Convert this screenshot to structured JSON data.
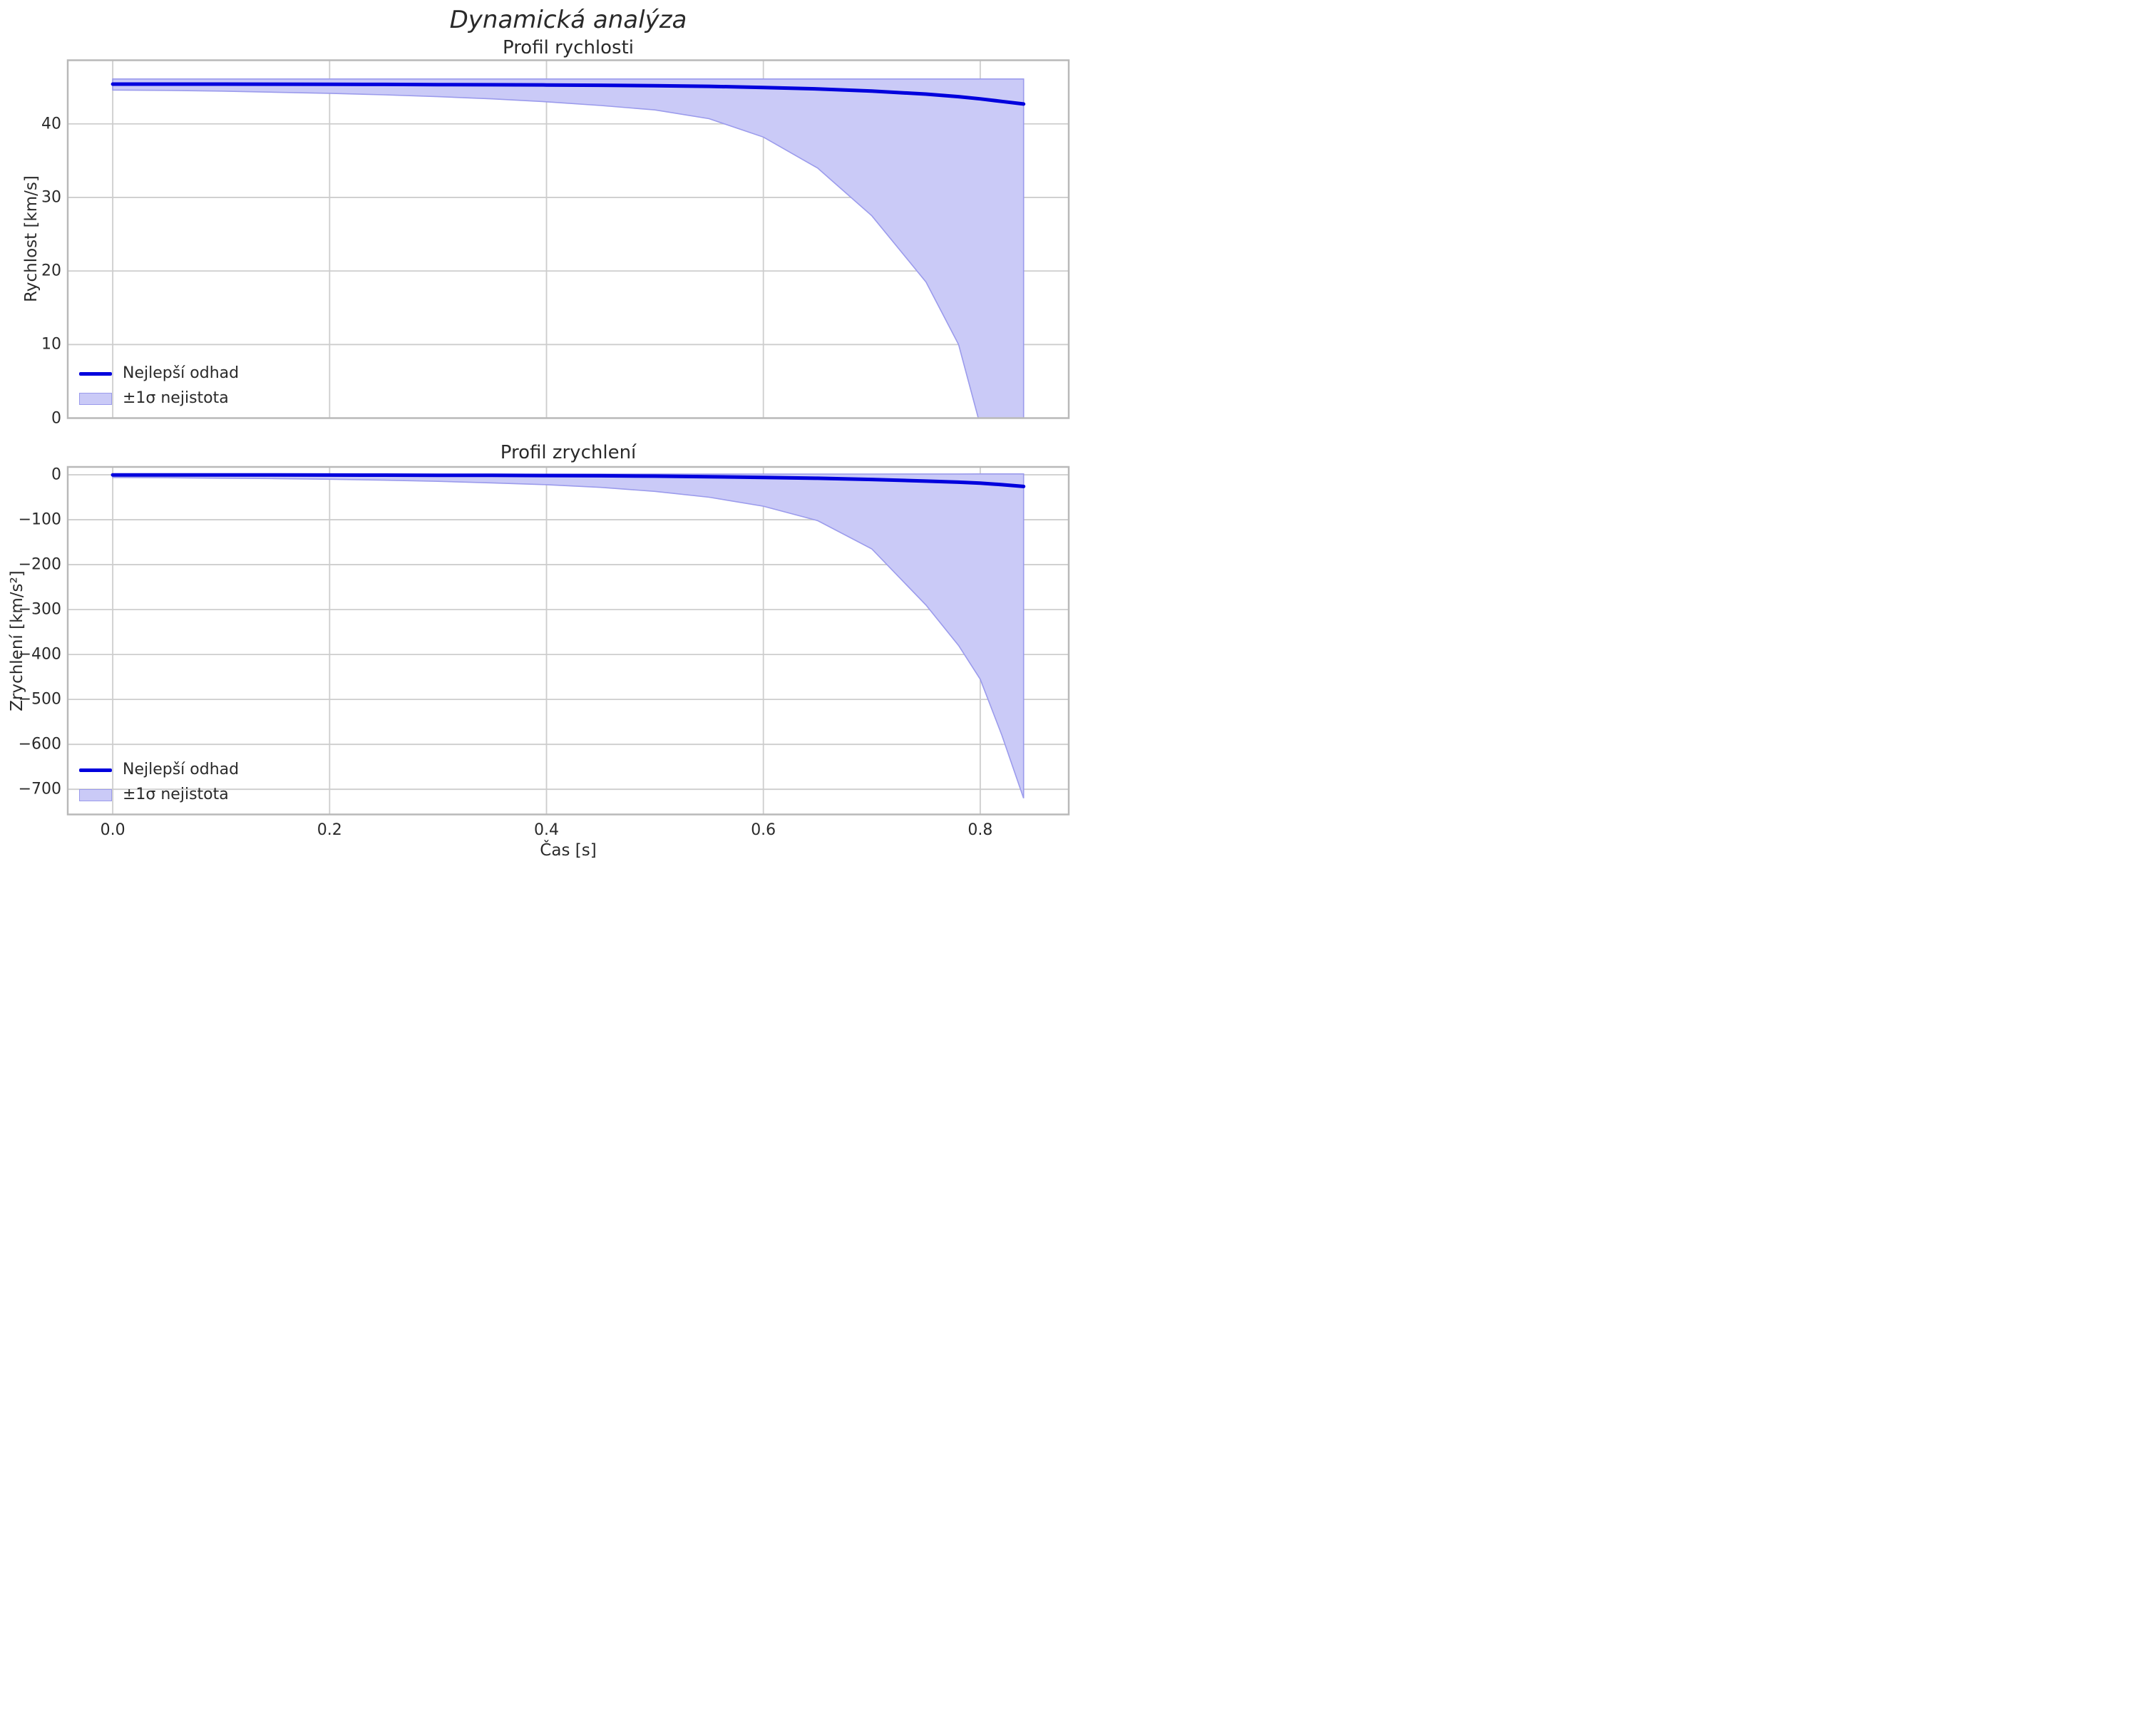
{
  "figure": {
    "title": "Dynamická analýza"
  },
  "colors": {
    "line": "#0000dd",
    "band_fill": "#cacaf7",
    "band_edge": "#9b9bec",
    "grid": "#cdcdcd",
    "spine": "#b9b9b9",
    "text": "#2a2a2a"
  },
  "legend": {
    "line_label": "Nejlepší odhad",
    "band_label": "±1σ nejistota"
  },
  "x_axis": {
    "label": "Čas [s]",
    "range": [
      -0.0415,
      0.8816
    ],
    "ticks": {
      "values": [
        0.0,
        0.2,
        0.4,
        0.6,
        0.8
      ],
      "labels": [
        "0.0",
        "0.2",
        "0.4",
        "0.6",
        "0.8"
      ]
    }
  },
  "chart_data": [
    {
      "type": "line",
      "title": "Profil rychlosti",
      "ylabel": "Rychlost [km/s]",
      "xlabel": "",
      "grid": true,
      "legend_position": "lower-left",
      "ylim": [
        0,
        48.65
      ],
      "yticks": {
        "values": [
          0,
          10,
          20,
          30,
          40
        ],
        "labels": [
          "0",
          "10",
          "20",
          "30",
          "40"
        ]
      },
      "x": [
        0.0,
        0.05,
        0.1,
        0.15,
        0.2,
        0.25,
        0.3,
        0.35,
        0.4,
        0.45,
        0.5,
        0.55,
        0.6,
        0.65,
        0.7,
        0.75,
        0.78,
        0.8,
        0.82,
        0.84
      ],
      "series": [
        {
          "name": "Nejlepší odhad",
          "values": [
            45.4,
            45.4,
            45.4,
            45.39,
            45.38,
            45.36,
            45.34,
            45.32,
            45.29,
            45.25,
            45.19,
            45.1,
            44.95,
            44.75,
            44.45,
            44.05,
            43.7,
            43.4,
            43.05,
            42.7
          ]
        }
      ],
      "band": {
        "name": "±1σ nejistota",
        "upper": [
          46.1,
          46.1,
          46.1,
          46.1,
          46.1,
          46.1,
          46.1,
          46.1,
          46.1,
          46.1,
          46.1,
          46.1,
          46.1,
          46.1,
          46.1,
          46.1,
          46.1,
          46.1,
          46.1,
          46.1
        ],
        "lower": [
          44.6,
          44.55,
          44.45,
          44.3,
          44.15,
          43.95,
          43.7,
          43.4,
          43.0,
          42.5,
          41.9,
          40.7,
          38.2,
          34.0,
          27.5,
          18.5,
          10.0,
          -1.0,
          -7.0,
          -14.0
        ]
      }
    },
    {
      "type": "line",
      "title": "Profil zrychlení",
      "ylabel": "Zrychlení [km/s²]",
      "xlabel": "Čas [s]",
      "grid": true,
      "legend_position": "lower-left",
      "ylim": [
        -756,
        17.5
      ],
      "yticks": {
        "values": [
          0,
          -100,
          -200,
          -300,
          -400,
          -500,
          -600,
          -700
        ],
        "labels": [
          "0",
          "−100",
          "−200",
          "−300",
          "−400",
          "−500",
          "−600",
          "−700"
        ]
      },
      "x": [
        0.0,
        0.05,
        0.1,
        0.15,
        0.2,
        0.25,
        0.3,
        0.35,
        0.4,
        0.45,
        0.5,
        0.55,
        0.6,
        0.65,
        0.7,
        0.75,
        0.78,
        0.8,
        0.82,
        0.84
      ],
      "series": [
        {
          "name": "Nejlepší odhad",
          "values": [
            -0.3,
            -0.3,
            -0.4,
            -0.5,
            -0.6,
            -0.8,
            -1.0,
            -1.3,
            -1.7,
            -2.2,
            -3.0,
            -4.2,
            -5.8,
            -7.8,
            -10.5,
            -14.0,
            -16.5,
            -18.5,
            -22.0,
            -26.0
          ]
        }
      ],
      "band": {
        "name": "±1σ nejistota",
        "upper": [
          1.0,
          1.0,
          1.0,
          1.1,
          1.1,
          1.2,
          1.2,
          1.3,
          1.3,
          1.4,
          1.4,
          1.5,
          1.5,
          1.6,
          1.7,
          1.8,
          1.8,
          1.9,
          2.0,
          2.0
        ],
        "lower": [
          -6.0,
          -6.5,
          -7.5,
          -8.5,
          -10.0,
          -12.0,
          -14.5,
          -18.0,
          -22.0,
          -28.0,
          -37.0,
          -50.0,
          -70.0,
          -102.0,
          -165.0,
          -290.0,
          -380.0,
          -455.0,
          -580.0,
          -720.0
        ]
      }
    }
  ]
}
